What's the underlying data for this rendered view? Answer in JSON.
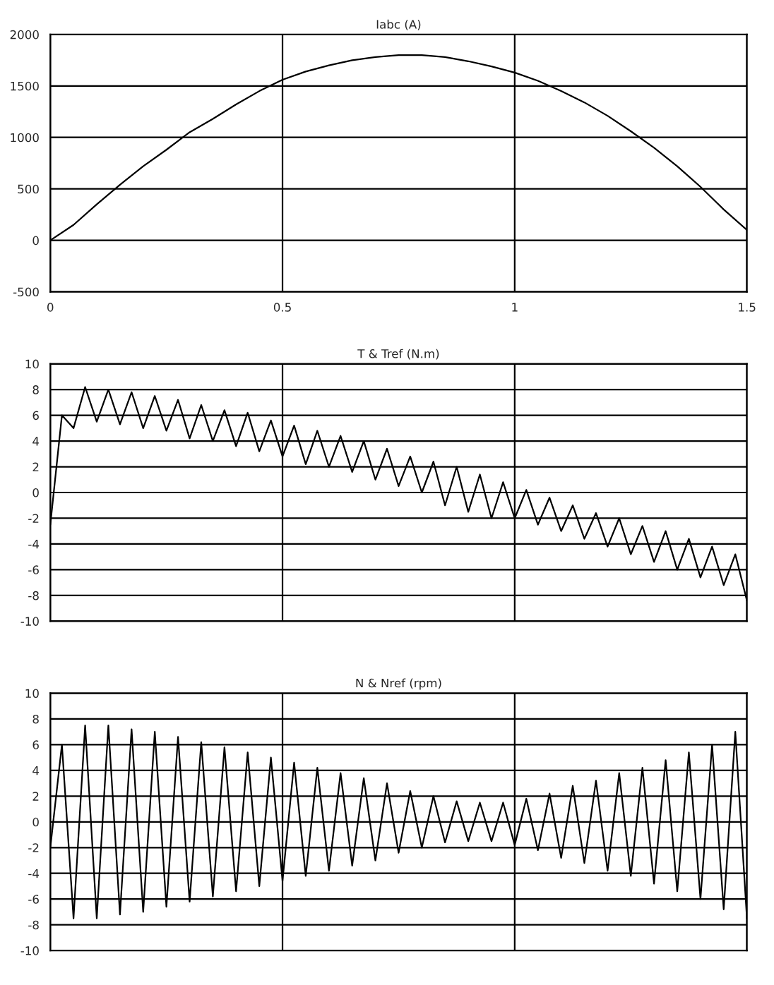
{
  "chart_data": [
    {
      "type": "line",
      "title": "Iabc (A)",
      "xlim": [
        0,
        1.5
      ],
      "xticks": [
        0,
        0.5,
        1,
        1.5
      ],
      "ylim": [
        -500,
        2000
      ],
      "yticks": [
        -500,
        0,
        500,
        1000,
        1500,
        2000
      ],
      "grid": true,
      "series": [
        {
          "color": "#000000",
          "x": [
            0,
            0.05,
            0.1,
            0.15,
            0.2,
            0.25,
            0.3,
            0.35,
            0.4,
            0.45,
            0.5,
            0.55,
            0.6,
            0.65,
            0.7,
            0.75,
            0.8,
            0.85,
            0.9,
            0.95,
            1.0,
            1.05,
            1.1,
            1.15,
            1.2,
            1.25,
            1.3,
            1.35,
            1.4,
            1.45,
            1.5
          ],
          "values": [
            0,
            150,
            350,
            540,
            720,
            880,
            1050,
            1180,
            1320,
            1450,
            1560,
            1640,
            1700,
            1750,
            1780,
            1800,
            1800,
            1780,
            1740,
            1690,
            1630,
            1550,
            1450,
            1340,
            1210,
            1060,
            900,
            720,
            520,
            300,
            100
          ]
        }
      ]
    },
    {
      "type": "line",
      "title": "T & Tref (N.m)",
      "xlim": [
        0,
        1.5
      ],
      "xticks": [
        0,
        0.5,
        1,
        1.5
      ],
      "ylim": [
        -10,
        10
      ],
      "yticks": [
        -10,
        -8,
        -6,
        -4,
        -2,
        0,
        2,
        4,
        6,
        8,
        10
      ],
      "grid": true,
      "tick_labels": "y",
      "series": [
        {
          "color": "#000000",
          "x": [
            0,
            0.025,
            0.05,
            0.075,
            0.1,
            0.125,
            0.15,
            0.175,
            0.2,
            0.225,
            0.25,
            0.275,
            0.3,
            0.325,
            0.35,
            0.375,
            0.4,
            0.425,
            0.45,
            0.475,
            0.5,
            0.525,
            0.55,
            0.575,
            0.6,
            0.625,
            0.65,
            0.675,
            0.7,
            0.725,
            0.75,
            0.775,
            0.8,
            0.825,
            0.85,
            0.875,
            0.9,
            0.925,
            0.95,
            0.975,
            1.0,
            1.025,
            1.05,
            1.075,
            1.1,
            1.125,
            1.15,
            1.175,
            1.2,
            1.225,
            1.25,
            1.275,
            1.3,
            1.325,
            1.35,
            1.375,
            1.4,
            1.425,
            1.45,
            1.475,
            1.5
          ],
          "values": [
            -2.5,
            6,
            5,
            8.2,
            5.5,
            8,
            5.3,
            7.8,
            5,
            7.5,
            4.8,
            7.2,
            4.2,
            6.8,
            4,
            6.4,
            3.6,
            6.2,
            3.2,
            5.6,
            2.8,
            5.2,
            2.2,
            4.8,
            2,
            4.4,
            1.6,
            4,
            1,
            3.4,
            0.5,
            2.8,
            0,
            2.4,
            -1,
            2,
            -1.5,
            1.4,
            -2,
            0.8,
            -2,
            0.2,
            -2.5,
            -0.4,
            -3,
            -1,
            -3.6,
            -1.6,
            -4.2,
            -2,
            -4.8,
            -2.6,
            -5.4,
            -3,
            -6,
            -3.6,
            -6.6,
            -4.2,
            -7.2,
            -4.8,
            -8.4
          ]
        }
      ]
    },
    {
      "type": "line",
      "title": "N & Nref (rpm)",
      "xlim": [
        0,
        1.5
      ],
      "xticks": [
        0,
        0.5,
        1,
        1.5
      ],
      "ylim": [
        -10,
        10
      ],
      "yticks": [
        -10,
        -8,
        -6,
        -4,
        -2,
        0,
        2,
        4,
        6,
        8,
        10
      ],
      "grid": true,
      "tick_labels": "y",
      "series": [
        {
          "color": "#000000",
          "x": [
            0,
            0.025,
            0.05,
            0.075,
            0.1,
            0.125,
            0.15,
            0.175,
            0.2,
            0.225,
            0.25,
            0.275,
            0.3,
            0.325,
            0.35,
            0.375,
            0.4,
            0.425,
            0.45,
            0.475,
            0.5,
            0.525,
            0.55,
            0.575,
            0.6,
            0.625,
            0.65,
            0.675,
            0.7,
            0.725,
            0.75,
            0.775,
            0.8,
            0.825,
            0.85,
            0.875,
            0.9,
            0.925,
            0.95,
            0.975,
            1.0,
            1.025,
            1.05,
            1.075,
            1.1,
            1.125,
            1.15,
            1.175,
            1.2,
            1.225,
            1.25,
            1.275,
            1.3,
            1.325,
            1.35,
            1.375,
            1.4,
            1.425,
            1.45,
            1.475,
            1.5
          ],
          "values": [
            -2,
            6,
            -7.5,
            7.5,
            -7.5,
            7.5,
            -7.2,
            7.2,
            -7,
            7,
            -6.6,
            6.6,
            -6.2,
            6.2,
            -5.8,
            5.8,
            -5.4,
            5.4,
            -5,
            5,
            -4.6,
            4.6,
            -4.2,
            4.2,
            -3.8,
            3.8,
            -3.4,
            3.4,
            -3,
            3,
            -2.4,
            2.4,
            -2,
            2,
            -1.6,
            1.6,
            -1.5,
            1.5,
            -1.5,
            1.5,
            -1.8,
            1.8,
            -2.2,
            2.2,
            -2.8,
            2.8,
            -3.2,
            3.2,
            -3.8,
            3.8,
            -4.2,
            4.2,
            -4.8,
            4.8,
            -5.4,
            5.4,
            -6,
            6,
            -6.8,
            7,
            -7.5
          ]
        }
      ]
    }
  ]
}
